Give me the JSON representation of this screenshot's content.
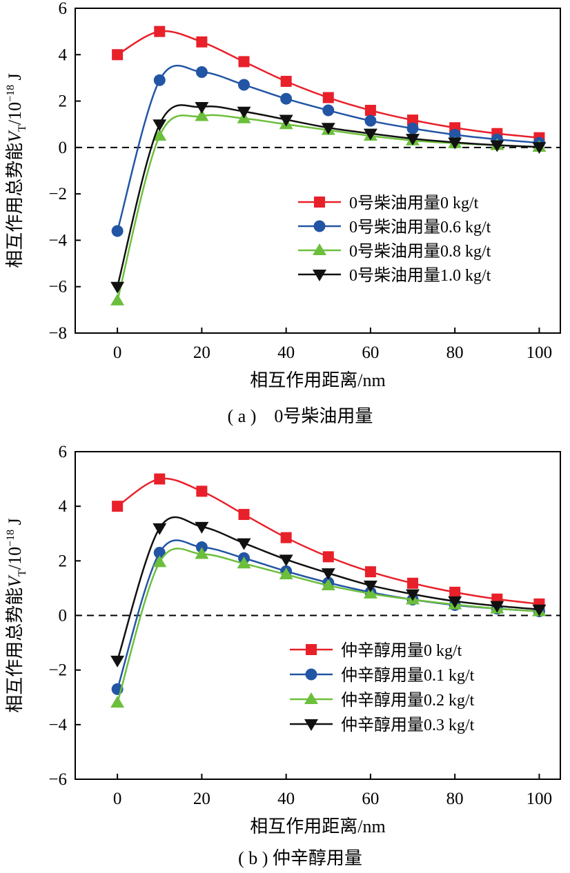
{
  "chart_data": [
    {
      "type": "line",
      "caption": "( a )　0号柴油用量",
      "xlabel": "相互作用距离/nm",
      "ylabel": "相互作用总势能V_T/10^-18 J",
      "ylabel_main": "相互作用总势能",
      "ylabel_symbol": "V",
      "ylabel_sub": "T",
      "ylabel_unit_base": "/10",
      "ylabel_unit_exp": "−18",
      "ylabel_unit_tail": " J",
      "xlim": [
        -10,
        105
      ],
      "ylim": [
        -8,
        6
      ],
      "xticks": [
        0,
        20,
        40,
        60,
        80,
        100
      ],
      "yticks": [
        -8,
        -6,
        -4,
        -2,
        0,
        2,
        4,
        6
      ],
      "ytick_labels": [
        "−8",
        "−6",
        "−4",
        "−2",
        "0",
        "2",
        "4",
        "6"
      ],
      "reference_line": {
        "y": 0,
        "style": "dashed"
      },
      "legend_position": "center-right",
      "x": [
        0,
        10,
        20,
        30,
        40,
        50,
        60,
        70,
        80,
        90,
        100
      ],
      "series": [
        {
          "name": "0号柴油用量0 kg/t",
          "color": "#e8202a",
          "marker": "square",
          "values": [
            4.0,
            5.0,
            4.55,
            3.7,
            2.85,
            2.15,
            1.6,
            1.18,
            0.85,
            0.6,
            0.42
          ]
        },
        {
          "name": "0号柴油用量0.6 kg/t",
          "color": "#2255a4",
          "marker": "circle",
          "values": [
            -3.6,
            2.9,
            3.25,
            2.7,
            2.1,
            1.6,
            1.15,
            0.82,
            0.55,
            0.35,
            0.2
          ]
        },
        {
          "name": "0号柴油用量0.8 kg/t",
          "color": "#6cbf3c",
          "marker": "triangle-up",
          "values": [
            -6.6,
            0.5,
            1.35,
            1.25,
            1.0,
            0.75,
            0.5,
            0.3,
            0.18,
            0.1,
            0.02
          ]
        },
        {
          "name": "0号柴油用量1.0 kg/t",
          "color": "#111111",
          "marker": "triangle-down",
          "values": [
            -6.0,
            1.0,
            1.75,
            1.55,
            1.2,
            0.85,
            0.6,
            0.38,
            0.22,
            0.1,
            0.02
          ]
        }
      ]
    },
    {
      "type": "line",
      "caption": "( b ) 仲辛醇用量",
      "xlabel": "相互作用距离/nm",
      "ylabel": "相互作用总势能V_T/10^-18 J",
      "ylabel_main": "相互作用总势能",
      "ylabel_symbol": "V",
      "ylabel_sub": "T",
      "ylabel_unit_base": "/10",
      "ylabel_unit_exp": "−18",
      "ylabel_unit_tail": " J",
      "xlim": [
        -10,
        105
      ],
      "ylim": [
        -6,
        6
      ],
      "xticks": [
        0,
        20,
        40,
        60,
        80,
        100
      ],
      "yticks": [
        -6,
        -4,
        -2,
        0,
        2,
        4,
        6
      ],
      "ytick_labels": [
        "−6",
        "−4",
        "−2",
        "0",
        "2",
        "4",
        "6"
      ],
      "reference_line": {
        "y": 0,
        "style": "dashed"
      },
      "legend_position": "bottom-right",
      "x": [
        0,
        10,
        20,
        30,
        40,
        50,
        60,
        70,
        80,
        90,
        100
      ],
      "series": [
        {
          "name": "仲辛醇用量0 kg/t",
          "color": "#e8202a",
          "marker": "square",
          "values": [
            4.0,
            5.0,
            4.55,
            3.7,
            2.85,
            2.15,
            1.6,
            1.18,
            0.85,
            0.6,
            0.42
          ]
        },
        {
          "name": "仲辛醇用量0.1 kg/t",
          "color": "#2255a4",
          "marker": "circle",
          "values": [
            -2.7,
            2.3,
            2.5,
            2.1,
            1.62,
            1.2,
            0.85,
            0.58,
            0.38,
            0.25,
            0.15
          ]
        },
        {
          "name": "仲辛醇用量0.2 kg/t",
          "color": "#6cbf3c",
          "marker": "triangle-up",
          "values": [
            -3.2,
            1.95,
            2.25,
            1.9,
            1.5,
            1.1,
            0.8,
            0.58,
            0.4,
            0.25,
            0.15
          ]
        },
        {
          "name": "仲辛醇用量0.3 kg/t",
          "color": "#111111",
          "marker": "triangle-down",
          "values": [
            -1.65,
            3.2,
            3.25,
            2.65,
            2.05,
            1.55,
            1.1,
            0.78,
            0.52,
            0.35,
            0.22
          ]
        }
      ]
    }
  ]
}
